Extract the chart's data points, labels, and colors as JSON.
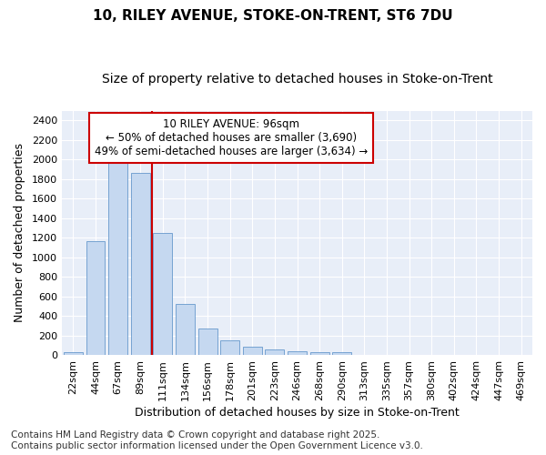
{
  "title1": "10, RILEY AVENUE, STOKE-ON-TRENT, ST6 7DU",
  "title2": "Size of property relative to detached houses in Stoke-on-Trent",
  "xlabel": "Distribution of detached houses by size in Stoke-on-Trent",
  "ylabel": "Number of detached properties",
  "categories": [
    "22sqm",
    "44sqm",
    "67sqm",
    "89sqm",
    "111sqm",
    "134sqm",
    "156sqm",
    "178sqm",
    "201sqm",
    "223sqm",
    "246sqm",
    "268sqm",
    "290sqm",
    "313sqm",
    "335sqm",
    "357sqm",
    "380sqm",
    "402sqm",
    "424sqm",
    "447sqm",
    "469sqm"
  ],
  "values": [
    25,
    1165,
    1975,
    1860,
    1250,
    525,
    275,
    150,
    85,
    55,
    35,
    30,
    25,
    5,
    5,
    2,
    2,
    1,
    1,
    1,
    1
  ],
  "bar_color": "#c5d8f0",
  "bar_edge_color": "#6699cc",
  "vline_x_index": 3,
  "vline_color": "#cc0000",
  "annotation_line1": "10 RILEY AVENUE: 96sqm",
  "annotation_line2": "← 50% of detached houses are smaller (3,690)",
  "annotation_line3": "49% of semi-detached houses are larger (3,634) →",
  "annotation_box_color": "#ffffff",
  "annotation_box_edge": "#cc0000",
  "ylim": [
    0,
    2500
  ],
  "yticks": [
    0,
    200,
    400,
    600,
    800,
    1000,
    1200,
    1400,
    1600,
    1800,
    2000,
    2200,
    2400
  ],
  "fig_bg": "#ffffff",
  "plot_bg": "#e8eef8",
  "grid_color": "#ffffff",
  "footer": "Contains HM Land Registry data © Crown copyright and database right 2025.\nContains public sector information licensed under the Open Government Licence v3.0.",
  "title1_fontsize": 11,
  "title2_fontsize": 10,
  "xlabel_fontsize": 9,
  "ylabel_fontsize": 9,
  "tick_fontsize": 8,
  "annotation_fontsize": 8.5,
  "footer_fontsize": 7.5
}
